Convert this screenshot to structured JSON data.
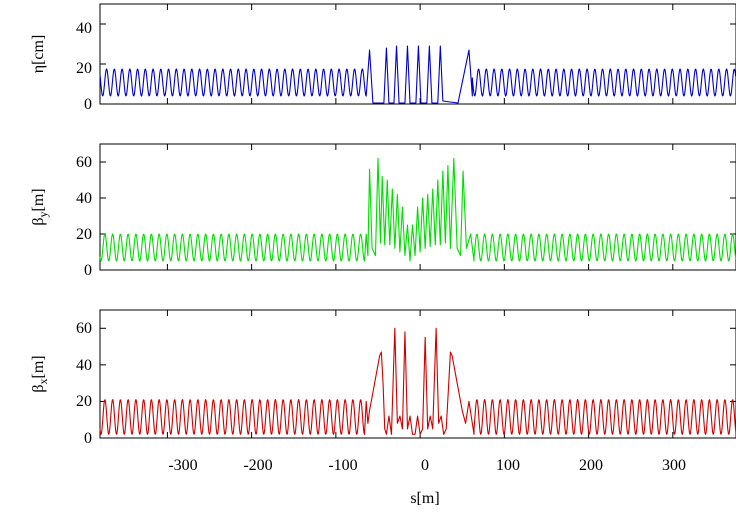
{
  "chart_data": [
    {
      "type": "line",
      "ylabel": "η[cm]",
      "ylabel_main": "η",
      "ylabel_sub": "",
      "ylabel_unit": "[cm]",
      "xlim": [
        -380,
        375
      ],
      "ylim": [
        0,
        50
      ],
      "yticks": [
        "0",
        "20",
        "40"
      ],
      "ytick_values": [
        0,
        20,
        40
      ],
      "grid": false,
      "series": [
        {
          "color": "#0000cc",
          "arc": {
            "period": 9.2,
            "min": 4,
            "max": 17.5,
            "ends": [
              -64,
              62
            ]
          },
          "ir_points": [
            [
              -64,
              4
            ],
            [
              -60,
              27
            ],
            [
              -56,
              0.5
            ],
            [
              -43,
              0.5
            ],
            [
              -40,
              28
            ],
            [
              -37,
              0.5
            ],
            [
              -31,
              0.5
            ],
            [
              -28,
              29
            ],
            [
              -25,
              0.5
            ],
            [
              -18,
              0.5
            ],
            [
              -15,
              29
            ],
            [
              -12,
              0.5
            ],
            [
              -5,
              0.5
            ],
            [
              -2,
              29
            ],
            [
              1,
              0.5
            ],
            [
              8,
              0.5
            ],
            [
              11,
              29
            ],
            [
              14,
              0.5
            ],
            [
              21,
              0.5
            ],
            [
              24,
              29
            ],
            [
              27,
              1.5
            ],
            [
              45,
              0.5
            ],
            [
              58,
              27
            ],
            [
              62,
              4
            ]
          ]
        }
      ]
    },
    {
      "type": "line",
      "ylabel": "βy[m]",
      "ylabel_main": "β",
      "ylabel_sub": "y",
      "ylabel_unit": "[m]",
      "xlim": [
        -380,
        375
      ],
      "ylim": [
        0,
        70
      ],
      "yticks": [
        "0",
        "20",
        "40",
        "60"
      ],
      "ytick_values": [
        0,
        20,
        40,
        60
      ],
      "grid": false,
      "series": [
        {
          "color": "#00dd00",
          "arc": {
            "period": 9.2,
            "min": 5,
            "max": 20,
            "ends": [
              -66,
              64
            ]
          },
          "ir_points": [
            [
              -66,
              5
            ],
            [
              -64,
              20
            ],
            [
              -62,
              8
            ],
            [
              -60,
              56
            ],
            [
              -57,
              12
            ],
            [
              -53,
              8
            ],
            [
              -50,
              62
            ],
            [
              -47,
              15
            ],
            [
              -45,
              52
            ],
            [
              -42,
              14
            ],
            [
              -39,
              50
            ],
            [
              -36,
              14
            ],
            [
              -33,
              45
            ],
            [
              -30,
              12
            ],
            [
              -27,
              42
            ],
            [
              -24,
              10
            ],
            [
              -21,
              35
            ],
            [
              -18,
              8
            ],
            [
              -15,
              25
            ],
            [
              -12,
              5
            ],
            [
              -9,
              25
            ],
            [
              -6,
              8
            ],
            [
              -3,
              35
            ],
            [
              0,
              10
            ],
            [
              3,
              40
            ],
            [
              6,
              12
            ],
            [
              9,
              42
            ],
            [
              12,
              13
            ],
            [
              15,
              45
            ],
            [
              18,
              14
            ],
            [
              21,
              50
            ],
            [
              24,
              14
            ],
            [
              27,
              55
            ],
            [
              30,
              15
            ],
            [
              33,
              58
            ],
            [
              36,
              12
            ],
            [
              40,
              62
            ],
            [
              44,
              12
            ],
            [
              48,
              8
            ],
            [
              51,
              55
            ],
            [
              55,
              12
            ],
            [
              60,
              20
            ],
            [
              64,
              5
            ]
          ]
        }
      ]
    },
    {
      "type": "line",
      "ylabel": "βx[m]",
      "ylabel_main": "β",
      "ylabel_sub": "x",
      "ylabel_unit": "[m]",
      "xlabel": "s[m]",
      "xlim": [
        -380,
        375
      ],
      "ylim": [
        0,
        70
      ],
      "yticks": [
        "0",
        "20",
        "40",
        "60"
      ],
      "ytick_values": [
        0,
        20,
        40,
        60
      ],
      "xticks": [
        "-300",
        "-200",
        "-100",
        "0",
        "100",
        "200",
        "300"
      ],
      "xtick_values": [
        -300,
        -200,
        -100,
        0,
        100,
        200,
        300
      ],
      "grid": false,
      "series": [
        {
          "color": "#cc0000",
          "arc": {
            "period": 9.2,
            "min": 2,
            "max": 21,
            "ends": [
              -66,
              64
            ]
          },
          "ir_points": [
            [
              -66,
              2
            ],
            [
              -64,
              20
            ],
            [
              -62,
              8
            ],
            [
              -60,
              15
            ],
            [
              -56,
              25
            ],
            [
              -52,
              35
            ],
            [
              -48,
              45
            ],
            [
              -46,
              47
            ],
            [
              -44,
              30
            ],
            [
              -42,
              5
            ],
            [
              -40,
              2
            ],
            [
              -37,
              12
            ],
            [
              -34,
              2
            ],
            [
              -30,
              60
            ],
            [
              -27,
              8
            ],
            [
              -24,
              12
            ],
            [
              -21,
              5
            ],
            [
              -18,
              58
            ],
            [
              -15,
              5
            ],
            [
              -12,
              12
            ],
            [
              -9,
              2
            ],
            [
              -6,
              2
            ],
            [
              -3,
              12
            ],
            [
              0,
              2
            ],
            [
              3,
              5
            ],
            [
              6,
              55
            ],
            [
              9,
              5
            ],
            [
              12,
              12
            ],
            [
              15,
              5
            ],
            [
              19,
              60
            ],
            [
              22,
              8
            ],
            [
              25,
              12
            ],
            [
              28,
              2
            ],
            [
              31,
              5
            ],
            [
              34,
              30
            ],
            [
              36,
              47
            ],
            [
              38,
              45
            ],
            [
              42,
              35
            ],
            [
              46,
              25
            ],
            [
              50,
              15
            ],
            [
              54,
              8
            ],
            [
              58,
              20
            ],
            [
              64,
              2
            ]
          ]
        }
      ]
    }
  ]
}
